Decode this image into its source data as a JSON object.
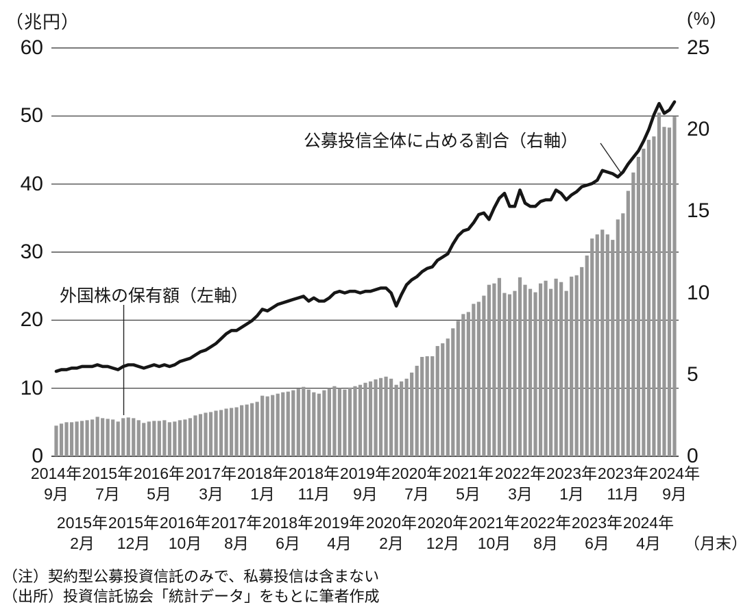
{
  "chart": {
    "left_axis_unit_label": "（兆円）",
    "right_axis_unit_label": "(%)",
    "annotations": {
      "bars_label": "外国株の保有額（左軸）",
      "line_label": "公募投信全体に占める割合（右軸）"
    },
    "x_axis": {
      "suffix": "（月末）",
      "row_primary": [
        [
          "2014年",
          "9月"
        ],
        [
          "2015年",
          "7月"
        ],
        [
          "2016年",
          "5月"
        ],
        [
          "2017年",
          "3月"
        ],
        [
          "2018年",
          "1月"
        ],
        [
          "2018年",
          "11月"
        ],
        [
          "2019年",
          "9月"
        ],
        [
          "2020年",
          "7月"
        ],
        [
          "2021年",
          "5月"
        ],
        [
          "2022年",
          "3月"
        ],
        [
          "2023年",
          "1月"
        ],
        [
          "2023年",
          "11月"
        ],
        [
          "2024年",
          "9月"
        ]
      ],
      "row_secondary": [
        [
          "2015年",
          "2月"
        ],
        [
          "2015年",
          "12月"
        ],
        [
          "2016年",
          "10月"
        ],
        [
          "2017年",
          "8月"
        ],
        [
          "2018年",
          "6月"
        ],
        [
          "2019年",
          "4月"
        ],
        [
          "2020年",
          "2月"
        ],
        [
          "2020年",
          "12月"
        ],
        [
          "2021年",
          "10月"
        ],
        [
          "2022年",
          "8月"
        ],
        [
          "2023年",
          "6月"
        ],
        [
          "2024年",
          "4月"
        ]
      ]
    }
  },
  "notes": [
    "（注）契約型公募投資信託のみで、私募投信は含まない",
    "（出所）投資信託協会「統計データ」をもとに筆者作成"
  ],
  "chart_data": {
    "type": "bar+line",
    "x_start": "2014年9月",
    "x_end": "2024年9月",
    "x_frequency": "monthly",
    "left_axis": {
      "label": "兆円",
      "ticks": [
        0,
        10,
        20,
        30,
        40,
        50,
        60
      ],
      "range": [
        0,
        60
      ]
    },
    "right_axis": {
      "label": "%",
      "ticks": [
        0,
        5,
        10,
        15,
        20,
        25
      ],
      "range": [
        0,
        25
      ]
    },
    "grid": "horizontal-only",
    "series": [
      {
        "name": "外国株の保有額（左軸）",
        "type": "bar",
        "axis": "left",
        "unit": "兆円",
        "color": "#979797",
        "values": [
          4.5,
          4.8,
          5.0,
          5.0,
          5.1,
          5.2,
          5.3,
          5.4,
          5.8,
          5.6,
          5.5,
          5.4,
          5.1,
          5.6,
          5.7,
          5.6,
          5.3,
          4.9,
          5.1,
          5.2,
          5.2,
          5.3,
          5.0,
          5.1,
          5.3,
          5.4,
          5.6,
          6.0,
          6.2,
          6.4,
          6.5,
          6.7,
          6.8,
          7.0,
          7.1,
          7.2,
          7.5,
          7.6,
          7.8,
          8.0,
          8.9,
          8.8,
          9.0,
          9.2,
          9.4,
          9.5,
          9.7,
          9.9,
          10.2,
          9.8,
          9.4,
          9.2,
          9.7,
          10.0,
          10.3,
          10.0,
          9.8,
          10.1,
          10.3,
          10.5,
          10.8,
          11.0,
          11.3,
          11.5,
          11.7,
          11.4,
          10.5,
          11.0,
          11.4,
          12.3,
          13.3,
          14.6,
          14.7,
          14.7,
          16.2,
          16.6,
          17.3,
          18.8,
          19.9,
          20.9,
          21.2,
          22.4,
          22.7,
          23.6,
          25.2,
          25.4,
          26.2,
          24.0,
          23.8,
          24.3,
          26.3,
          25.2,
          24.6,
          24.1,
          25.4,
          25.8,
          24.6,
          26.1,
          25.6,
          24.3,
          26.4,
          26.6,
          27.8,
          29.5,
          32.0,
          32.6,
          33.3,
          32.6,
          31.8,
          34.8,
          35.7,
          39.0,
          41.7,
          44.0,
          45.2,
          46.5,
          47.0,
          50.5,
          48.4,
          48.3,
          49.9
        ]
      },
      {
        "name": "公募投信全体に占める割合（右軸）",
        "type": "line",
        "axis": "right",
        "unit": "%",
        "color": "#161616",
        "values": [
          5.2,
          5.3,
          5.3,
          5.4,
          5.4,
          5.5,
          5.5,
          5.5,
          5.6,
          5.5,
          5.5,
          5.4,
          5.3,
          5.5,
          5.6,
          5.6,
          5.5,
          5.4,
          5.5,
          5.6,
          5.5,
          5.6,
          5.5,
          5.6,
          5.8,
          5.9,
          6.0,
          6.2,
          6.4,
          6.5,
          6.7,
          6.9,
          7.2,
          7.5,
          7.7,
          7.7,
          7.9,
          8.1,
          8.3,
          8.6,
          9.0,
          8.9,
          9.1,
          9.3,
          9.4,
          9.5,
          9.6,
          9.7,
          9.8,
          9.5,
          9.7,
          9.5,
          9.5,
          9.7,
          10.0,
          10.1,
          10.0,
          10.1,
          10.1,
          10.0,
          10.1,
          10.1,
          10.2,
          10.3,
          10.3,
          10.0,
          9.2,
          9.9,
          10.5,
          10.8,
          11.0,
          11.3,
          11.5,
          11.6,
          12.0,
          12.2,
          12.4,
          13.0,
          13.5,
          13.8,
          13.9,
          14.3,
          14.8,
          14.9,
          14.5,
          15.2,
          15.8,
          16.1,
          15.3,
          15.3,
          16.3,
          15.5,
          15.3,
          15.3,
          15.6,
          15.7,
          15.7,
          16.3,
          16.1,
          15.7,
          16.0,
          16.2,
          16.5,
          16.6,
          16.7,
          16.9,
          17.5,
          17.4,
          17.3,
          17.1,
          17.4,
          17.9,
          18.3,
          18.7,
          19.3,
          20.0,
          20.9,
          21.6,
          21.0,
          21.2,
          21.7
        ]
      }
    ]
  }
}
